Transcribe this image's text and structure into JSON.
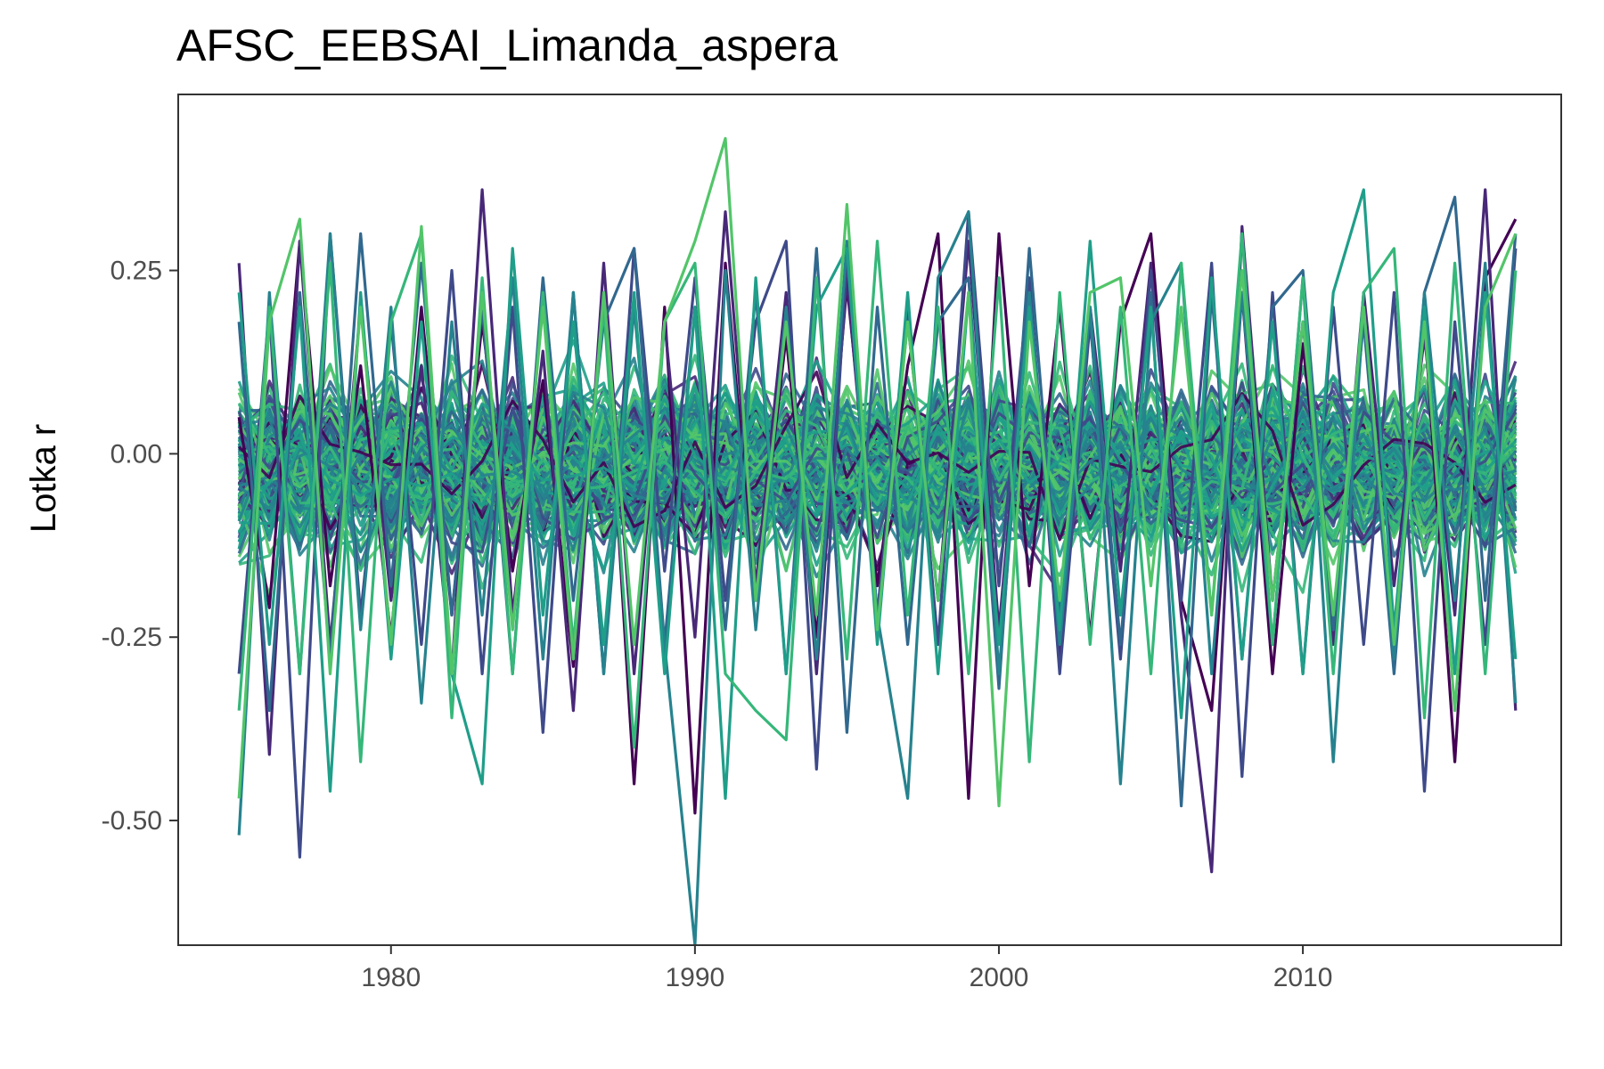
{
  "chart_data": {
    "type": "line",
    "title": "AFSC_EEBSAI_Limanda_aspera",
    "xlabel": "",
    "ylabel": "Lotka r",
    "xlim": [
      1973,
      2018.5
    ],
    "ylim": [
      -0.67,
      0.49
    ],
    "x_ticks": [
      1980,
      1990,
      2000,
      2010
    ],
    "y_ticks": [
      0.25,
      0.0,
      -0.25,
      -0.5
    ],
    "y_tick_labels": [
      "0.25",
      "0.00",
      "-0.25",
      "-0.50"
    ],
    "grid": false,
    "legend": "none",
    "palette": [
      "#440154",
      "#482878",
      "#3e4a89",
      "#31688e",
      "#26828e",
      "#1f9e89",
      "#35b779",
      "#52c569"
    ],
    "x": [
      1975,
      1976,
      1977,
      1978,
      1979,
      1980,
      1981,
      1982,
      1983,
      1984,
      1985,
      1986,
      1987,
      1988,
      1989,
      1990,
      1991,
      1992,
      1993,
      1994,
      1995,
      1996,
      1997,
      1998,
      1999,
      2000,
      2001,
      2002,
      2003,
      2004,
      2005,
      2006,
      2007,
      2008,
      2009,
      2010,
      2011,
      2012,
      2013,
      2014,
      2015,
      2016,
      2017
    ],
    "series": [
      {
        "color": "#440154",
        "values": [
          0.05,
          -0.21,
          0.29,
          -0.18,
          0.12,
          -0.25,
          0.2,
          -0.22,
          0.18,
          -0.16,
          0.1,
          -0.29,
          0.22,
          -0.45,
          0.2,
          -0.49,
          0.26,
          -0.2,
          0.16,
          -0.25,
          0.23,
          -0.18,
          0.12,
          0.3,
          -0.47,
          0.3,
          -0.18,
          0.2,
          -0.25,
          0.18,
          0.3,
          -0.2,
          -0.35,
          0.22,
          -0.3,
          0.15,
          -0.24,
          0.2,
          -0.27,
          0.18,
          -0.42,
          0.24,
          0.32
        ]
      },
      {
        "color": "#482878",
        "values": [
          0.26,
          -0.41,
          0.29,
          -0.26,
          0.2,
          -0.2,
          0.12,
          -0.3,
          0.36,
          -0.22,
          0.14,
          -0.35,
          0.26,
          -0.3,
          0.18,
          -0.25,
          0.33,
          -0.18,
          0.22,
          -0.3,
          0.24,
          -0.22,
          0.18,
          -0.2,
          0.29,
          -0.24,
          0.22,
          -0.28,
          0.2,
          -0.16,
          0.26,
          -0.22,
          -0.57,
          0.31,
          -0.2,
          0.18,
          -0.26,
          0.22,
          -0.18,
          0.16,
          -0.22,
          0.36,
          -0.35
        ]
      },
      {
        "color": "#3e4a89",
        "values": [
          -0.3,
          0.2,
          -0.55,
          0.3,
          -0.22,
          0.18,
          -0.26,
          0.25,
          -0.3,
          0.2,
          -0.38,
          0.22,
          -0.3,
          0.28,
          -0.16,
          0.24,
          -0.2,
          0.18,
          0.29,
          -0.43,
          0.27,
          -0.22,
          0.2,
          -0.26,
          0.33,
          -0.18,
          0.24,
          -0.3,
          0.18,
          -0.28,
          0.25,
          -0.2,
          0.26,
          -0.44,
          0.22,
          -0.3,
          0.2,
          -0.26,
          0.22,
          -0.46,
          0.18,
          -0.26,
          0.28
        ]
      },
      {
        "color": "#31688e",
        "values": [
          0.18,
          -0.35,
          0.22,
          -0.28,
          0.3,
          -0.18,
          0.26,
          -0.22,
          0.2,
          -0.3,
          0.24,
          -0.2,
          0.18,
          0.28,
          -0.26,
          0.2,
          -0.24,
          0.22,
          -0.3,
          0.28,
          -0.38,
          0.2,
          -0.26,
          0.18,
          0.24,
          -0.32,
          0.28,
          -0.22,
          0.2,
          -0.26,
          0.22,
          -0.48,
          0.22,
          -0.28,
          0.2,
          0.25,
          -0.24,
          0.18,
          -0.3,
          0.22,
          0.35,
          -0.2,
          0.3
        ]
      },
      {
        "color": "#26828e",
        "values": [
          -0.52,
          0.22,
          -0.3,
          0.3,
          -0.24,
          0.2,
          -0.34,
          0.18,
          -0.22,
          0.24,
          -0.28,
          0.22,
          -0.3,
          0.2,
          -0.26,
          -0.67,
          0.25,
          -0.24,
          0.2,
          -0.28,
          0.29,
          -0.22,
          -0.47,
          0.24,
          0.33,
          -0.3,
          0.22,
          -0.26,
          0.2,
          -0.45,
          0.18,
          0.26,
          -0.3,
          0.22,
          -0.26,
          0.24,
          -0.42,
          0.2,
          -0.28,
          0.22,
          -0.2,
          0.26,
          -0.34
        ]
      },
      {
        "color": "#1f9e89",
        "values": [
          0.22,
          -0.26,
          0.2,
          -0.46,
          0.22,
          -0.28,
          0.18,
          -0.3,
          -0.45,
          0.28,
          -0.22,
          0.18,
          -0.26,
          0.22,
          -0.3,
          0.2,
          -0.47,
          0.24,
          -0.3,
          0.2,
          0.28,
          -0.26,
          0.22,
          -0.3,
          0.22,
          -0.26,
          0.2,
          -0.24,
          0.29,
          -0.22,
          0.2,
          -0.36,
          0.24,
          -0.28,
          0.18,
          -0.3,
          0.22,
          0.36,
          -0.24,
          0.2,
          -0.3,
          0.22,
          -0.28
        ]
      },
      {
        "color": "#35b779",
        "values": [
          -0.35,
          0.2,
          -0.3,
          0.26,
          -0.42,
          0.18,
          0.3,
          -0.36,
          0.24,
          -0.3,
          0.22,
          -0.26,
          0.2,
          -0.4,
          0.18,
          0.26,
          -0.3,
          -0.35,
          -0.39,
          0.24,
          -0.28,
          0.29,
          -0.22,
          0.2,
          -0.3,
          0.24,
          -0.42,
          0.22,
          -0.26,
          0.2,
          -0.3,
          0.26,
          -0.22,
          0.3,
          -0.26,
          0.24,
          -0.3,
          0.22,
          0.28,
          -0.36,
          0.26,
          -0.3,
          0.25
        ]
      },
      {
        "color": "#52c569",
        "values": [
          -0.47,
          0.18,
          0.32,
          -0.3,
          0.2,
          -0.26,
          0.31,
          -0.3,
          0.22,
          -0.24,
          0.2,
          -0.28,
          0.22,
          -0.26,
          0.18,
          0.29,
          0.43,
          -0.2,
          0.18,
          -0.22,
          0.34,
          -0.24,
          0.18,
          -0.2,
          0.22,
          -0.48,
          0.18,
          -0.2,
          0.22,
          0.24,
          -0.18,
          0.2,
          -0.22,
          0.25,
          -0.2,
          0.18,
          -0.22,
          0.2,
          -0.26,
          0.18,
          -0.35,
          0.2,
          0.3
        ]
      }
    ]
  }
}
